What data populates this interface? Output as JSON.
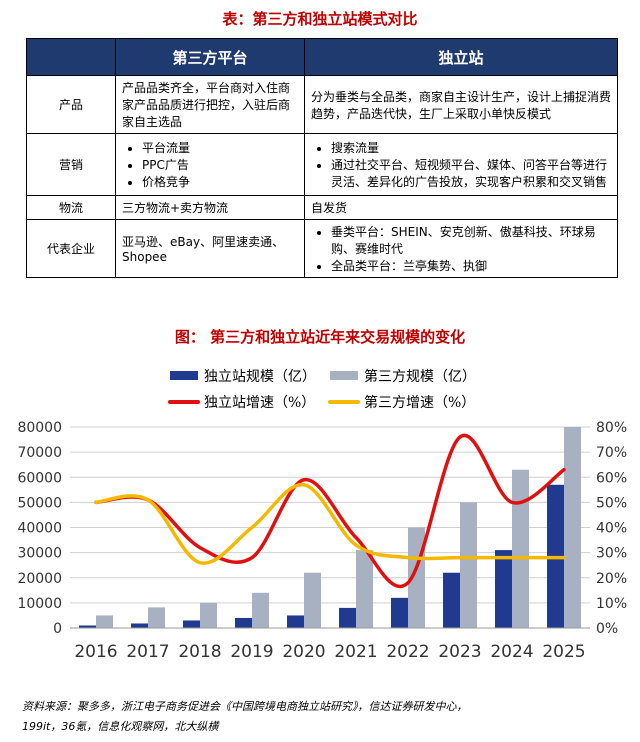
{
  "table": {
    "title": "表：第三方和独立站模式对比",
    "headers": [
      "",
      "第三方平台",
      "独立站"
    ],
    "rows": [
      {
        "label": "产品",
        "c1": {
          "text": "产品品类齐全，平台商对入住商家产品品质进行把控，入驻后商家自主选品"
        },
        "c2": {
          "text": "分为垂类与全品类，商家自主设计生产，设计上捕捉消费趋势，产品迭代快，生厂上采取小单快反模式"
        }
      },
      {
        "label": "营销",
        "c1": {
          "bullets": [
            "平台流量",
            "PPC广告",
            "价格竞争"
          ]
        },
        "c2": {
          "bullets": [
            "搜索流量",
            "通过社交平台、短视频平台、媒体、问答平台等进行灵活、差异化的广告投放，实现客户积累和交叉销售"
          ]
        }
      },
      {
        "label": "物流",
        "c1": {
          "text": "三方物流+卖方物流"
        },
        "c2": {
          "text": "自发货"
        }
      },
      {
        "label": "代表企业",
        "c1": {
          "text": "亚马逊、eBay、阿里速卖通、Shopee"
        },
        "c2": {
          "bullets": [
            "垂类平台：SHEIN、安克创新、傲基科技、环球易购、赛维时代",
            "全品类平台：兰亭集势、执御"
          ]
        }
      }
    ]
  },
  "chart_data": {
    "type": "bar",
    "title": "图：  第三方和独立站近年来交易规模的变化",
    "categories": [
      "2016",
      "2017",
      "2018",
      "2019",
      "2020",
      "2021",
      "2022",
      "2023",
      "2024",
      "2025"
    ],
    "series": [
      {
        "name": "独立站规模（亿）",
        "kind": "bar",
        "axis": "left",
        "color": "#1f3a8f",
        "values": [
          1000,
          1800,
          3000,
          4000,
          5000,
          8000,
          12000,
          22000,
          31000,
          57000
        ]
      },
      {
        "name": "第三方规模（亿）",
        "kind": "bar",
        "axis": "left",
        "color": "#a7b1c2",
        "values": [
          5000,
          8200,
          10000,
          14000,
          22000,
          31000,
          40000,
          50000,
          63000,
          80000
        ]
      },
      {
        "name": "独立站增速（%）",
        "kind": "line",
        "axis": "right",
        "color": "#e01010",
        "values": [
          50,
          51,
          32,
          28,
          59,
          36,
          18,
          76,
          50,
          63
        ]
      },
      {
        "name": "第三方增速（%）",
        "kind": "line",
        "axis": "right",
        "color": "#f5b800",
        "values": [
          50,
          51,
          26,
          40,
          57,
          33,
          28,
          28,
          28,
          28
        ]
      }
    ],
    "ylim_left": [
      0,
      80000
    ],
    "yticks_left": [
      "0",
      "10000",
      "20000",
      "30000",
      "40000",
      "50000",
      "60000",
      "70000",
      "80000"
    ],
    "ylim_right": [
      0,
      80
    ],
    "yticks_right": [
      "0%",
      "10%",
      "20%",
      "30%",
      "40%",
      "50%",
      "60%",
      "70%",
      "80%"
    ],
    "grid": true,
    "legend": "top"
  },
  "source": {
    "line1": "资料来源：聚多多，浙江电子商务促进会《中国跨境电商独立站研究》，信达证券研发中心，",
    "line2": "199it，36氪，信息化观察网，北大纵横"
  }
}
